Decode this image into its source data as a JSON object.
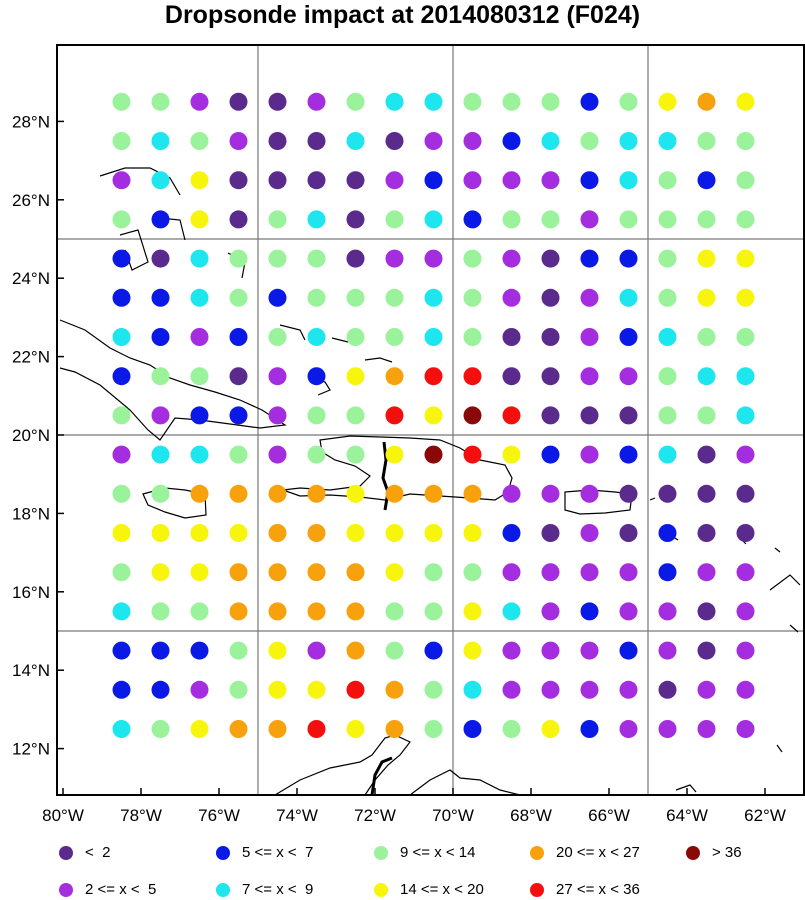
{
  "title": "Dropsonde impact at 2014080312 (F024)",
  "colors": {
    "c0": "#5a2a8c",
    "c1": "#a52de0",
    "c2": "#0a19e6",
    "c3": "#1de6ee",
    "c4": "#9af29a",
    "c5": "#f7f50c",
    "c6": "#f7a10c",
    "c7": "#f50e0e",
    "c8": "#8a0808"
  },
  "legend": [
    {
      "key": "c0",
      "label": "<  2"
    },
    {
      "key": "c2",
      "label": "5 <= x <  7"
    },
    {
      "key": "c4",
      "label": "9 <= x < 14"
    },
    {
      "key": "c6",
      "label": "20 <= x < 27"
    },
    {
      "key": "c8",
      "label": "> 36"
    },
    {
      "key": "c1",
      "label": "2 <= x <  5"
    },
    {
      "key": "c3",
      "label": "7 <= x <  9"
    },
    {
      "key": "c5",
      "label": "14 <= x < 20"
    },
    {
      "key": "c7",
      "label": "27 <= x < 36"
    }
  ],
  "lat_labels": [
    "28°N",
    "26°N",
    "24°N",
    "22°N",
    "20°N",
    "18°N",
    "16°N",
    "14°N",
    "12°N"
  ],
  "lon_labels": [
    "80°W",
    "78°W",
    "76°W",
    "74°W",
    "72°W",
    "70°W",
    "68°W",
    "66°W",
    "64°W",
    "62°W"
  ],
  "chart_data": {
    "type": "scatter",
    "title": "Dropsonde impact at 2014080312 (F024)",
    "lon_range": [
      -80,
      -62
    ],
    "lat_range": [
      11,
      30
    ],
    "grid_lons": [
      -78.5,
      -77.5,
      -76.5,
      -75.5,
      -74.5,
      -73.5,
      -72.5,
      -71.5,
      -70.5,
      -69.5,
      -68.5,
      -67.5,
      -66.5,
      -65.5,
      -64.5,
      -63.5,
      -62.5
    ],
    "grid_lats": [
      28.5,
      27.5,
      26.5,
      25.5,
      24.5,
      23.5,
      22.5,
      21.5,
      20.5,
      19.5,
      18.5,
      17.5,
      16.5,
      15.5,
      14.5,
      13.5,
      12.5
    ],
    "category_grid": [
      [
        4,
        4,
        1,
        0,
        0,
        1,
        4,
        3,
        3,
        4,
        4,
        4,
        2,
        4,
        5,
        6,
        5
      ],
      [
        4,
        3,
        4,
        1,
        0,
        0,
        3,
        0,
        1,
        1,
        2,
        3,
        4,
        3,
        3,
        4,
        4
      ],
      [
        1,
        3,
        5,
        0,
        0,
        0,
        0,
        1,
        2,
        1,
        1,
        1,
        2,
        3,
        4,
        2,
        4
      ],
      [
        4,
        2,
        5,
        0,
        4,
        3,
        0,
        4,
        3,
        2,
        4,
        4,
        1,
        4,
        4,
        4,
        4
      ],
      [
        2,
        0,
        3,
        4,
        4,
        4,
        0,
        1,
        1,
        4,
        1,
        0,
        2,
        2,
        4,
        5,
        5
      ],
      [
        2,
        2,
        3,
        4,
        2,
        4,
        4,
        4,
        3,
        4,
        1,
        0,
        1,
        3,
        4,
        5,
        5
      ],
      [
        3,
        2,
        1,
        2,
        4,
        3,
        4,
        4,
        3,
        4,
        0,
        0,
        1,
        2,
        3,
        4,
        4
      ],
      [
        2,
        4,
        4,
        0,
        1,
        2,
        5,
        6,
        7,
        7,
        0,
        0,
        1,
        1,
        4,
        3,
        3
      ],
      [
        4,
        1,
        2,
        2,
        1,
        4,
        4,
        7,
        5,
        8,
        7,
        0,
        0,
        0,
        4,
        4,
        3
      ],
      [
        1,
        3,
        3,
        4,
        1,
        4,
        4,
        5,
        8,
        7,
        5,
        2,
        1,
        2,
        3,
        0,
        1
      ],
      [
        4,
        4,
        6,
        6,
        6,
        6,
        5,
        6,
        6,
        6,
        1,
        1,
        1,
        0,
        0,
        0,
        0
      ],
      [
        5,
        5,
        5,
        5,
        6,
        6,
        5,
        5,
        5,
        5,
        2,
        0,
        1,
        0,
        2,
        0,
        0
      ],
      [
        4,
        5,
        5,
        6,
        6,
        6,
        6,
        5,
        4,
        4,
        1,
        1,
        1,
        1,
        2,
        1,
        1
      ],
      [
        3,
        4,
        4,
        6,
        6,
        6,
        6,
        4,
        4,
        5,
        3,
        1,
        2,
        1,
        1,
        0,
        1
      ],
      [
        2,
        2,
        2,
        4,
        5,
        1,
        6,
        4,
        2,
        5,
        1,
        1,
        1,
        2,
        1,
        0,
        1
      ],
      [
        2,
        2,
        1,
        4,
        5,
        5,
        7,
        6,
        4,
        3,
        1,
        1,
        1,
        1,
        0,
        1,
        1
      ],
      [
        3,
        4,
        5,
        6,
        6,
        7,
        5,
        6,
        4,
        2,
        4,
        5,
        2,
        1,
        1,
        1,
        1
      ]
    ]
  }
}
